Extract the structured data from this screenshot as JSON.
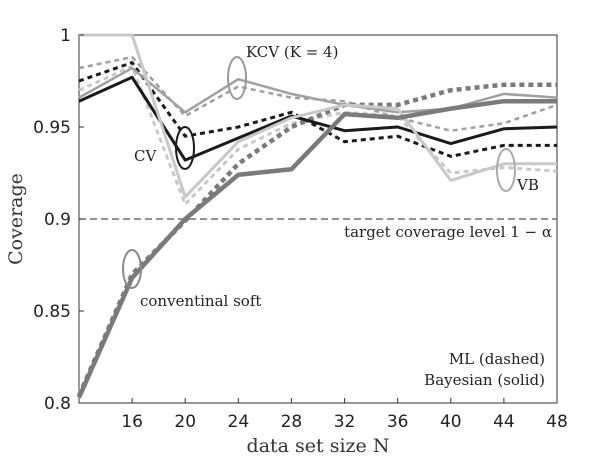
{
  "chart_data": {
    "type": "line",
    "xlabel": "data set size N",
    "ylabel": "Coverage",
    "x": [
      12,
      16,
      20,
      24,
      28,
      32,
      36,
      40,
      44,
      48
    ],
    "xticks": [
      "16",
      "20",
      "24",
      "28",
      "32",
      "36",
      "40",
      "44",
      "48"
    ],
    "yticks": [
      "0.8",
      "0.85",
      "0.9",
      "0.95",
      "1"
    ],
    "xlim": [
      12,
      48
    ],
    "ylim": [
      0.8,
      1.0
    ],
    "target_level": 0.9,
    "grid": false,
    "colors": {
      "cv": "#1a1a1a",
      "kcv": "#a0a0a0",
      "vb": "#c8c8c8",
      "soft": "#7a7a7a",
      "target": "#555555"
    },
    "series": [
      {
        "name": "CV Bayesian (solid)",
        "method": "cv",
        "style": "solid",
        "values": [
          0.964,
          0.977,
          0.932,
          0.944,
          0.956,
          0.948,
          0.95,
          0.941,
          0.949,
          0.95
        ]
      },
      {
        "name": "CV ML (dashed)",
        "method": "cv",
        "style": "dashed",
        "values": [
          0.975,
          0.985,
          0.945,
          0.95,
          0.958,
          0.942,
          0.945,
          0.934,
          0.94,
          0.94
        ]
      },
      {
        "name": "KCV Bayesian (solid)",
        "method": "kcv",
        "style": "solid",
        "values": [
          0.966,
          0.982,
          0.958,
          0.976,
          0.968,
          0.962,
          0.958,
          0.96,
          0.968,
          0.966
        ]
      },
      {
        "name": "KCV ML (dashed)",
        "method": "kcv",
        "style": "dashed",
        "values": [
          0.982,
          0.988,
          0.956,
          0.972,
          0.966,
          0.964,
          0.955,
          0.948,
          0.952,
          0.962
        ]
      },
      {
        "name": "VB Bayesian (solid)",
        "method": "vb",
        "style": "solid",
        "values": [
          1.0,
          1.0,
          0.912,
          0.942,
          0.955,
          0.962,
          0.96,
          0.921,
          0.93,
          0.93
        ]
      },
      {
        "name": "VB ML (dashed)",
        "method": "vb",
        "style": "dashed",
        "values": [
          0.97,
          0.983,
          0.908,
          0.938,
          0.952,
          0.958,
          0.956,
          0.925,
          0.928,
          0.926
        ]
      },
      {
        "name": "conventinal soft Bayesian (solid)",
        "method": "soft",
        "style": "solid",
        "values": [
          0.803,
          0.868,
          0.9,
          0.924,
          0.927,
          0.957,
          0.955,
          0.96,
          0.964,
          0.964
        ]
      },
      {
        "name": "conventinal soft ML (dashed)",
        "method": "soft",
        "style": "dashed",
        "values": [
          0.804,
          0.87,
          0.899,
          0.93,
          0.95,
          0.962,
          0.962,
          0.97,
          0.973,
          0.973
        ]
      }
    ],
    "annotations": {
      "kcv": "KCV (K = 4)",
      "cv": "CV",
      "vb": "VB",
      "target": "target coverage level 1 − α",
      "soft": "conventinal soft",
      "legend_ml": "ML (dashed)",
      "legend_bayes": "Bayesian (solid)"
    }
  }
}
